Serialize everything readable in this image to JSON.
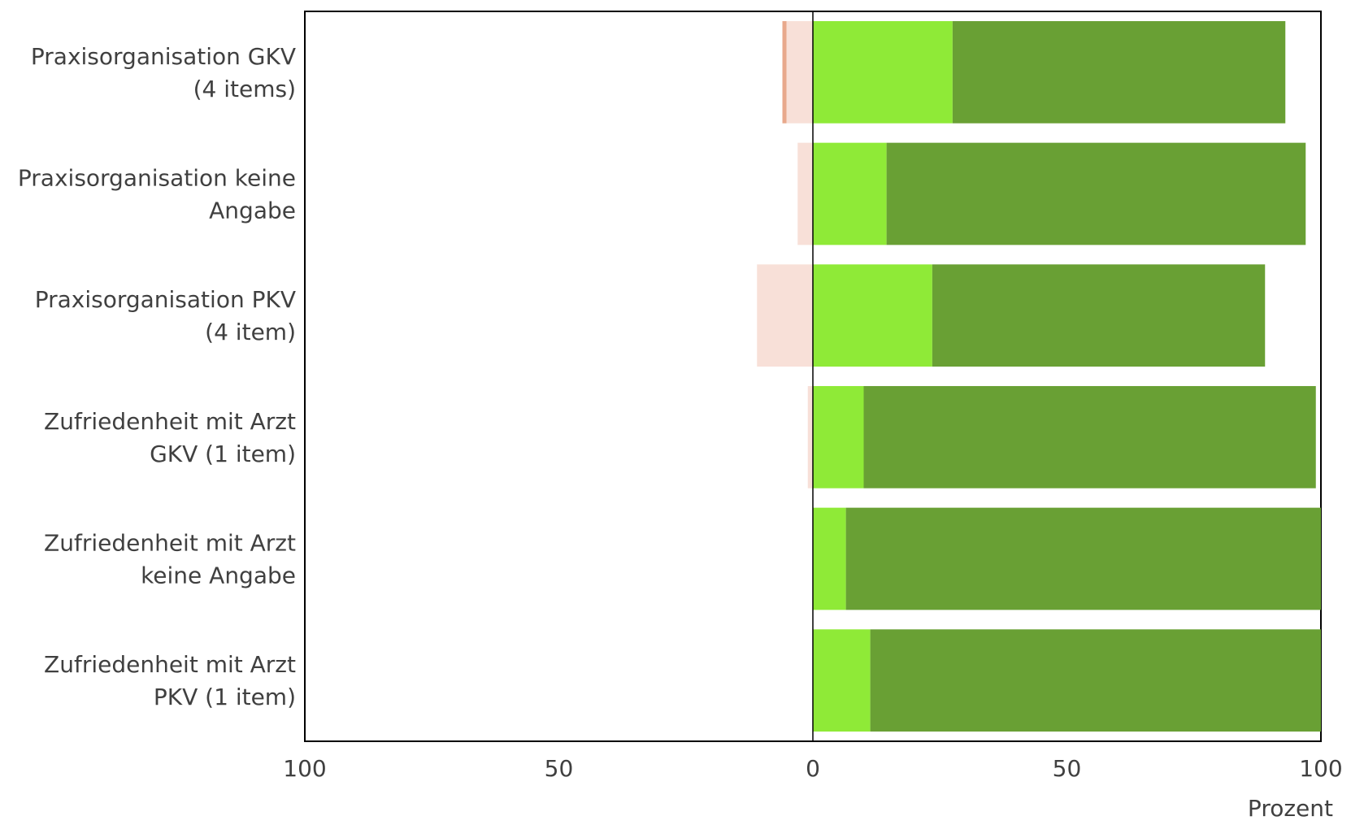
{
  "chart_data": {
    "type": "bar",
    "orientation": "horizontal",
    "stacked": true,
    "diverging": true,
    "categories": [
      [
        "Praxisorganisation GKV",
        "(4 items)"
      ],
      [
        "Praxisorganisation keine",
        "Angabe"
      ],
      [
        "Praxisorganisation PKV",
        "(4 item)"
      ],
      [
        "Zufriedenheit mit Arzt",
        "GKV (1 item)"
      ],
      [
        "Zufriedenheit mit Arzt",
        "keine Angabe"
      ],
      [
        "Zufriedenheit mit Arzt",
        "PKV (1 item)"
      ]
    ],
    "negative_series": [
      {
        "color": "#e8a98c",
        "values": [
          0.8,
          0,
          0,
          0,
          0,
          0
        ]
      },
      {
        "color": "#f8e0d8",
        "values": [
          5.2,
          3.0,
          11.0,
          1.0,
          0,
          0
        ]
      }
    ],
    "positive_series": [
      {
        "color": "#8fea37",
        "values": [
          27.5,
          14.5,
          23.5,
          10.0,
          6.5,
          11.3
        ]
      },
      {
        "color": "#69a034",
        "values": [
          65.5,
          82.5,
          65.5,
          89.0,
          93.5,
          88.7
        ]
      }
    ],
    "xlim": [
      -100,
      100
    ],
    "xticks": [
      {
        "value": -100,
        "label": "100"
      },
      {
        "value": -50,
        "label": "50"
      },
      {
        "value": 0,
        "label": "0"
      },
      {
        "value": 50,
        "label": "50"
      },
      {
        "value": 100,
        "label": "100"
      }
    ],
    "xlabel": "Prozent",
    "grid": false,
    "axis_color": "#000000"
  }
}
